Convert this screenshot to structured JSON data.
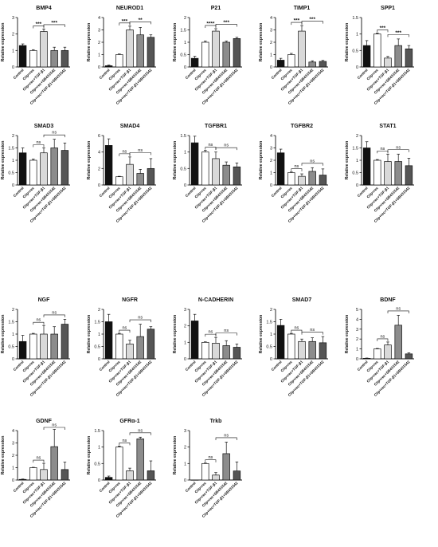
{
  "figure": {
    "categories": [
      "Control",
      "Clip+rec",
      "Clip+rec+TGF-β1",
      "Clip+rec+SB431542",
      "Clip+rec+TGF-β1+SB431542"
    ],
    "bar_colors": [
      "#111111",
      "#ffffff",
      "#d9d9d9",
      "#8c8c8c",
      "#555555"
    ]
  },
  "chart_data": [
    {
      "type": "bar",
      "title": "BMP4",
      "ylabel": "Relative expression",
      "ylim": [
        0,
        3
      ],
      "yticks": [
        0,
        1,
        2,
        3
      ],
      "values": [
        1.3,
        1.0,
        2.15,
        1.0,
        1.0
      ],
      "errors": [
        0.1,
        0.05,
        0.15,
        0.2,
        0.2
      ],
      "annotations": [
        {
          "from": 1,
          "to": 2,
          "label": "***"
        },
        {
          "from": 2,
          "to": 4,
          "label": "***"
        }
      ]
    },
    {
      "type": "bar",
      "title": "NEUROD1",
      "ylabel": "Relative expression",
      "ylim": [
        0,
        4
      ],
      "yticks": [
        0,
        1,
        2,
        3,
        4
      ],
      "values": [
        0.1,
        1.0,
        3.0,
        2.6,
        2.4
      ],
      "errors": [
        0.05,
        0.05,
        0.3,
        0.6,
        0.2
      ],
      "annotations": [
        {
          "from": 1,
          "to": 2,
          "label": "***"
        },
        {
          "from": 2,
          "to": 4,
          "label": "**"
        }
      ]
    },
    {
      "type": "bar",
      "title": "P21",
      "ylabel": "Relative expression",
      "ylim": [
        0,
        2
      ],
      "yticks": [
        0.0,
        0.5,
        1.0,
        1.5,
        2.0
      ],
      "values": [
        0.35,
        1.0,
        1.45,
        1.0,
        1.15
      ],
      "errors": [
        0.08,
        0.05,
        0.1,
        0.05,
        0.05
      ],
      "annotations": [
        {
          "from": 1,
          "to": 2,
          "label": "****"
        },
        {
          "from": 2,
          "to": 4,
          "label": "***"
        }
      ]
    },
    {
      "type": "bar",
      "title": "TIMP1",
      "ylabel": "Relative expression",
      "ylim": [
        0,
        4
      ],
      "yticks": [
        0,
        1,
        2,
        3,
        4
      ],
      "values": [
        0.55,
        1.0,
        2.9,
        0.4,
        0.45
      ],
      "errors": [
        0.15,
        0.1,
        0.45,
        0.1,
        0.08
      ],
      "annotations": [
        {
          "from": 1,
          "to": 2,
          "label": "***"
        },
        {
          "from": 2,
          "to": 4,
          "label": "***"
        }
      ]
    },
    {
      "type": "bar",
      "title": "SPP1",
      "ylabel": "Relative expression",
      "ylim": [
        0,
        1.5
      ],
      "yticks": [
        0.0,
        0.5,
        1.0,
        1.5
      ],
      "values": [
        0.65,
        1.0,
        0.27,
        0.65,
        0.55
      ],
      "errors": [
        0.15,
        0.03,
        0.05,
        0.2,
        0.1
      ],
      "annotations": [
        {
          "from": 1,
          "to": 2,
          "label": "***"
        },
        {
          "from": 2,
          "to": 4,
          "label": "***"
        }
      ]
    },
    {
      "type": "bar",
      "title": "SMAD3",
      "ylabel": "Relative expression",
      "ylim": [
        0,
        2
      ],
      "yticks": [
        0.0,
        0.5,
        1.0,
        1.5,
        2.0
      ],
      "values": [
        1.3,
        1.0,
        1.3,
        1.5,
        1.4
      ],
      "errors": [
        0.2,
        0.05,
        0.2,
        0.35,
        0.3
      ],
      "annotations": [
        {
          "from": 1,
          "to": 2,
          "label": "ns"
        },
        {
          "from": 2,
          "to": 4,
          "label": "ns"
        }
      ]
    },
    {
      "type": "bar",
      "title": "SMAD4",
      "ylabel": "Relative expression",
      "ylim": [
        0,
        6
      ],
      "yticks": [
        0,
        2,
        4,
        6
      ],
      "values": [
        4.8,
        1.0,
        2.5,
        1.4,
        2.0
      ],
      "errors": [
        0.8,
        0.05,
        0.9,
        0.5,
        1.2
      ],
      "annotations": [
        {
          "from": 1,
          "to": 2,
          "label": "ns"
        },
        {
          "from": 2,
          "to": 4,
          "label": "ns"
        }
      ]
    },
    {
      "type": "bar",
      "title": "TGFBR1",
      "ylabel": "Relative expression",
      "ylim": [
        0,
        1.5
      ],
      "yticks": [
        0.0,
        0.5,
        1.0,
        1.5
      ],
      "values": [
        1.28,
        1.0,
        0.8,
        0.6,
        0.55
      ],
      "errors": [
        0.2,
        0.05,
        0.2,
        0.1,
        0.12
      ],
      "annotations": [
        {
          "from": 1,
          "to": 2,
          "label": "ns"
        },
        {
          "from": 2,
          "to": 4,
          "label": "ns"
        }
      ]
    },
    {
      "type": "bar",
      "title": "TGFBR2",
      "ylabel": "Relative expression",
      "ylim": [
        0,
        4
      ],
      "yticks": [
        0,
        1,
        2,
        3,
        4
      ],
      "values": [
        2.6,
        1.0,
        0.7,
        1.1,
        0.8
      ],
      "errors": [
        0.3,
        0.05,
        0.2,
        0.3,
        0.5
      ],
      "annotations": [
        {
          "from": 1,
          "to": 2,
          "label": "ns"
        },
        {
          "from": 2,
          "to": 4,
          "label": "ns"
        }
      ]
    },
    {
      "type": "bar",
      "title": "STAT1",
      "ylabel": "Relative expression",
      "ylim": [
        0,
        2
      ],
      "yticks": [
        0.0,
        0.5,
        1.0,
        1.5,
        2.0
      ],
      "values": [
        1.5,
        1.0,
        0.95,
        0.95,
        0.78
      ],
      "errors": [
        0.25,
        0.03,
        0.3,
        0.3,
        0.3
      ],
      "annotations": [
        {
          "from": 1,
          "to": 2,
          "label": "ns"
        },
        {
          "from": 2,
          "to": 4,
          "label": "ns"
        }
      ]
    },
    {
      "type": "bar",
      "title": "NGF",
      "ylabel": "Relative expression",
      "ylim": [
        0,
        2
      ],
      "yticks": [
        0.0,
        0.5,
        1.0,
        1.5,
        2.0
      ],
      "values": [
        0.7,
        1.0,
        1.0,
        1.0,
        1.4
      ],
      "errors": [
        0.25,
        0.03,
        0.35,
        0.3,
        0.2
      ],
      "annotations": [
        {
          "from": 1,
          "to": 2,
          "label": "ns"
        },
        {
          "from": 2,
          "to": 4,
          "label": "ns"
        }
      ]
    },
    {
      "type": "bar",
      "title": "NGFR",
      "ylabel": "Relative expression",
      "ylim": [
        0,
        2
      ],
      "yticks": [
        0.0,
        0.5,
        1.0,
        1.5,
        2.0
      ],
      "values": [
        1.5,
        1.0,
        0.6,
        0.9,
        1.2
      ],
      "errors": [
        0.3,
        0.03,
        0.15,
        0.5,
        0.1
      ],
      "annotations": [
        {
          "from": 1,
          "to": 2,
          "label": "ns"
        },
        {
          "from": 2,
          "to": 4,
          "label": "ns"
        }
      ]
    },
    {
      "type": "bar",
      "title": "N-CADHERIN",
      "ylabel": "Relative expression",
      "ylim": [
        0,
        3
      ],
      "yticks": [
        0,
        1,
        2,
        3
      ],
      "values": [
        2.3,
        1.0,
        0.95,
        0.8,
        0.7
      ],
      "errors": [
        0.4,
        0.03,
        0.35,
        0.3,
        0.2
      ],
      "annotations": [
        {
          "from": 1,
          "to": 2,
          "label": "ns"
        },
        {
          "from": 2,
          "to": 4,
          "label": "ns"
        }
      ]
    },
    {
      "type": "bar",
      "title": "SMAD7",
      "ylabel": "Relative expression",
      "ylim": [
        0,
        2
      ],
      "yticks": [
        0.0,
        0.5,
        1.0,
        1.5,
        2.0
      ],
      "values": [
        1.35,
        1.0,
        0.7,
        0.7,
        0.65
      ],
      "errors": [
        0.25,
        0.03,
        0.1,
        0.15,
        0.25
      ],
      "annotations": [
        {
          "from": 1,
          "to": 2,
          "label": "ns"
        },
        {
          "from": 2,
          "to": 4,
          "label": "ns"
        }
      ]
    },
    {
      "type": "bar",
      "title": "BDNF",
      "ylabel": "Relative expression",
      "ylim": [
        0,
        5
      ],
      "yticks": [
        0,
        1,
        2,
        3,
        4,
        5
      ],
      "values": [
        0.05,
        1.0,
        1.4,
        3.4,
        0.5
      ],
      "errors": [
        0.03,
        0.05,
        0.3,
        1.0,
        0.1
      ],
      "annotations": [
        {
          "from": 1,
          "to": 2,
          "label": "ns"
        },
        {
          "from": 2,
          "to": 4,
          "label": "ns"
        }
      ]
    },
    {
      "type": "bar",
      "title": "GDNF",
      "ylabel": "Relative expression",
      "ylim": [
        0,
        4
      ],
      "yticks": [
        0,
        1,
        2,
        3,
        4
      ],
      "values": [
        0.05,
        1.0,
        0.85,
        2.7,
        0.85
      ],
      "errors": [
        0.03,
        0.03,
        0.5,
        1.4,
        0.6
      ],
      "annotations": [
        {
          "from": 1,
          "to": 2,
          "label": "ns"
        },
        {
          "from": 2,
          "to": 4,
          "label": "ns"
        }
      ]
    },
    {
      "type": "bar",
      "title": "GFRα-1",
      "ylabel": "Relative expression",
      "ylim": [
        0,
        1.5
      ],
      "yticks": [
        0.0,
        0.5,
        1.0,
        1.5
      ],
      "values": [
        0.08,
        1.0,
        0.28,
        1.25,
        0.28
      ],
      "errors": [
        0.04,
        0.03,
        0.08,
        0.05,
        0.3
      ],
      "annotations": [
        {
          "from": 1,
          "to": 2,
          "label": "ns"
        },
        {
          "from": 2,
          "to": 4,
          "label": "ns"
        }
      ]
    },
    {
      "type": "bar",
      "title": "Trkb",
      "ylabel": "Relative expression",
      "ylim": [
        0,
        3
      ],
      "yticks": [
        0,
        1,
        2,
        3
      ],
      "values": [
        0.0,
        1.0,
        0.3,
        1.6,
        0.55
      ],
      "errors": [
        0.0,
        0.03,
        0.15,
        0.7,
        0.55
      ],
      "annotations": [
        {
          "from": 1,
          "to": 2,
          "label": "ns"
        },
        {
          "from": 2,
          "to": 4,
          "label": "ns"
        }
      ]
    }
  ]
}
